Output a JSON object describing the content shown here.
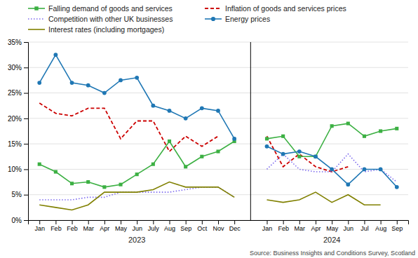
{
  "chart_data": {
    "type": "line",
    "categories": [
      "Jan",
      "Feb",
      "Feb",
      "Mar",
      "Apr",
      "May",
      "Jun",
      "July",
      "Aug",
      "Sep",
      "Oct",
      "Nov",
      "Dec",
      null,
      "Jan",
      "Feb",
      "Mar",
      "Apr",
      "May",
      "Jun",
      "Jul",
      "Aug",
      "Sep"
    ],
    "series": [
      {
        "name": "Falling demand of goods and services",
        "color": "#3cb043",
        "marker": "square",
        "line_style": "solid",
        "values": [
          11.0,
          9.5,
          7.2,
          7.5,
          6.5,
          7.0,
          9.0,
          11.0,
          15.5,
          10.5,
          12.5,
          13.5,
          15.5,
          null,
          16.0,
          16.5,
          12.5,
          12.5,
          18.5,
          19.0,
          16.5,
          17.5,
          18.0
        ]
      },
      {
        "name": "Inflation of goods and services prices",
        "color": "#cc0000",
        "line_style": "dashed",
        "values": [
          23.0,
          21.0,
          20.5,
          22.0,
          22.0,
          16.0,
          19.5,
          19.5,
          13.5,
          16.5,
          14.5,
          16.5,
          null,
          null,
          16.5,
          10.5,
          13.0,
          10.5,
          9.5,
          10.5,
          null,
          null,
          null
        ]
      },
      {
        "name": "Competition with other UK businesses",
        "color": "#7b68ee",
        "line_style": "dotted",
        "values": [
          4.0,
          4.0,
          4.0,
          4.5,
          4.5,
          5.5,
          5.5,
          5.5,
          5.5,
          6.0,
          6.5,
          6.5,
          4.5,
          null,
          10.0,
          13.0,
          10.0,
          9.5,
          9.5,
          13.0,
          9.5,
          10.0,
          7.5
        ]
      },
      {
        "name": "Energy prices",
        "color": "#1f77b4",
        "marker": "circle",
        "line_style": "solid",
        "values": [
          27.0,
          32.5,
          27.0,
          26.5,
          25.0,
          27.5,
          28.0,
          22.5,
          21.5,
          20.0,
          22.0,
          21.5,
          16.0,
          null,
          14.5,
          13.0,
          13.5,
          12.5,
          10.0,
          7.0,
          10.0,
          10.0,
          6.5
        ]
      },
      {
        "name": "Interest rates (including mortgages)",
        "color": "#808000",
        "line_style": "solid",
        "values": [
          3.0,
          2.5,
          2.0,
          3.0,
          5.5,
          5.5,
          5.5,
          6.0,
          7.5,
          6.5,
          6.5,
          6.5,
          4.5,
          null,
          4.0,
          3.5,
          4.0,
          5.5,
          3.5,
          5.0,
          3.0,
          3.0,
          null
        ]
      }
    ],
    "ylim": [
      0,
      35
    ],
    "yticks": [
      {
        "value": 0,
        "label": "0%"
      },
      {
        "value": 5,
        "label": "5%"
      },
      {
        "value": 10,
        "label": "10%"
      },
      {
        "value": 15,
        "label": "15%"
      },
      {
        "value": 20,
        "label": "20%"
      },
      {
        "value": 25,
        "label": "25%"
      },
      {
        "value": 30,
        "label": "30%"
      },
      {
        "value": 35,
        "label": "35%"
      }
    ],
    "grid": true,
    "legend": "top-left",
    "annotations": [
      "2023",
      "2024"
    ],
    "source": "Source: Business Insights and Conditions Survey, Scotland"
  }
}
